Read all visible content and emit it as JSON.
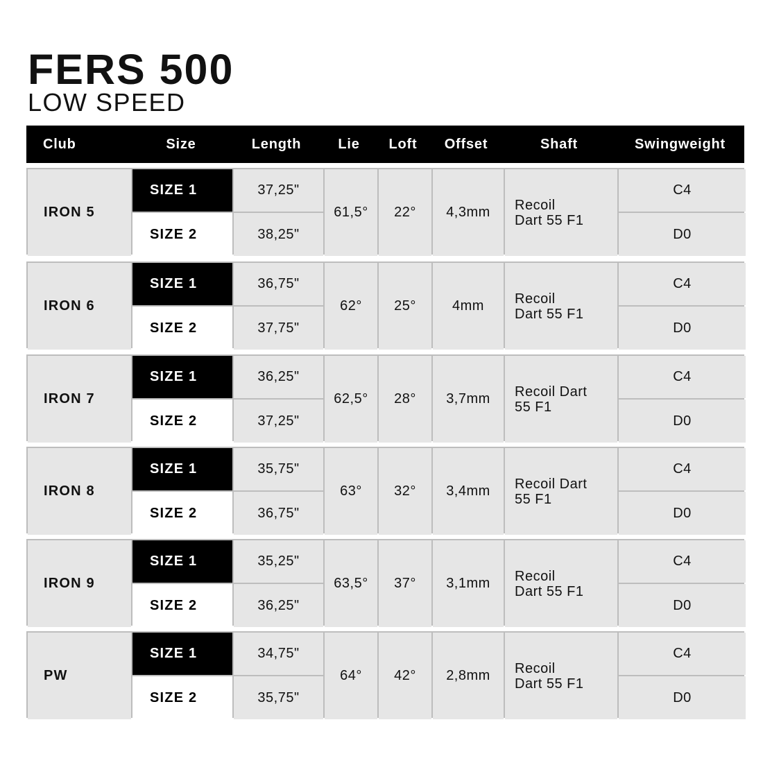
{
  "title": "FERS 500",
  "subtitle": "LOW SPEED",
  "headers": [
    "Club",
    "Size",
    "Length",
    "Lie",
    "Loft",
    "Offset",
    "Shaft",
    "Swingweight"
  ],
  "colors": {
    "header_bg": "#000000",
    "cell_bg": "#e6e6e6",
    "border": "#bdbdbd",
    "size1_bg": "#000000",
    "size2_bg": "#ffffff"
  },
  "rows": [
    {
      "club": "IRON 5",
      "sizes": [
        "SIZE 1",
        "SIZE 2"
      ],
      "lengths": [
        "37,25\"",
        "38,25\""
      ],
      "lie": "61,5°",
      "loft": "22°",
      "offset": "4,3mm",
      "shaft": "Recoil\nDart 55 F1",
      "swingweights": [
        "C4",
        "D0"
      ]
    },
    {
      "club": "IRON 6",
      "sizes": [
        "SIZE 1",
        "SIZE 2"
      ],
      "lengths": [
        "36,75\"",
        "37,75\""
      ],
      "lie": "62°",
      "loft": "25°",
      "offset": "4mm",
      "shaft": "Recoil\nDart 55 F1",
      "swingweights": [
        "C4",
        "D0"
      ]
    },
    {
      "club": "IRON 7",
      "sizes": [
        "SIZE 1",
        "SIZE 2"
      ],
      "lengths": [
        "36,25\"",
        "37,25\""
      ],
      "lie": "62,5°",
      "loft": "28°",
      "offset": "3,7mm",
      "shaft": "Recoil Dart\n55 F1",
      "swingweights": [
        "C4",
        "D0"
      ]
    },
    {
      "club": "IRON 8",
      "sizes": [
        "SIZE 1",
        "SIZE 2"
      ],
      "lengths": [
        "35,75\"",
        "36,75\""
      ],
      "lie": "63°",
      "loft": "32°",
      "offset": "3,4mm",
      "shaft": "Recoil Dart\n55 F1",
      "swingweights": [
        "C4",
        "D0"
      ]
    },
    {
      "club": "IRON 9",
      "sizes": [
        "SIZE 1",
        "SIZE 2"
      ],
      "lengths": [
        "35,25\"",
        "36,25\""
      ],
      "lie": "63,5°",
      "loft": "37°",
      "offset": "3,1mm",
      "shaft": "Recoil\nDart 55 F1",
      "swingweights": [
        "C4",
        "D0"
      ]
    },
    {
      "club": "PW",
      "sizes": [
        "SIZE 1",
        "SIZE 2"
      ],
      "lengths": [
        "34,75\"",
        "35,75\""
      ],
      "lie": "64°",
      "loft": "42°",
      "offset": "2,8mm",
      "shaft": "Recoil\nDart 55 F1",
      "swingweights": [
        "C4",
        "D0"
      ]
    }
  ]
}
